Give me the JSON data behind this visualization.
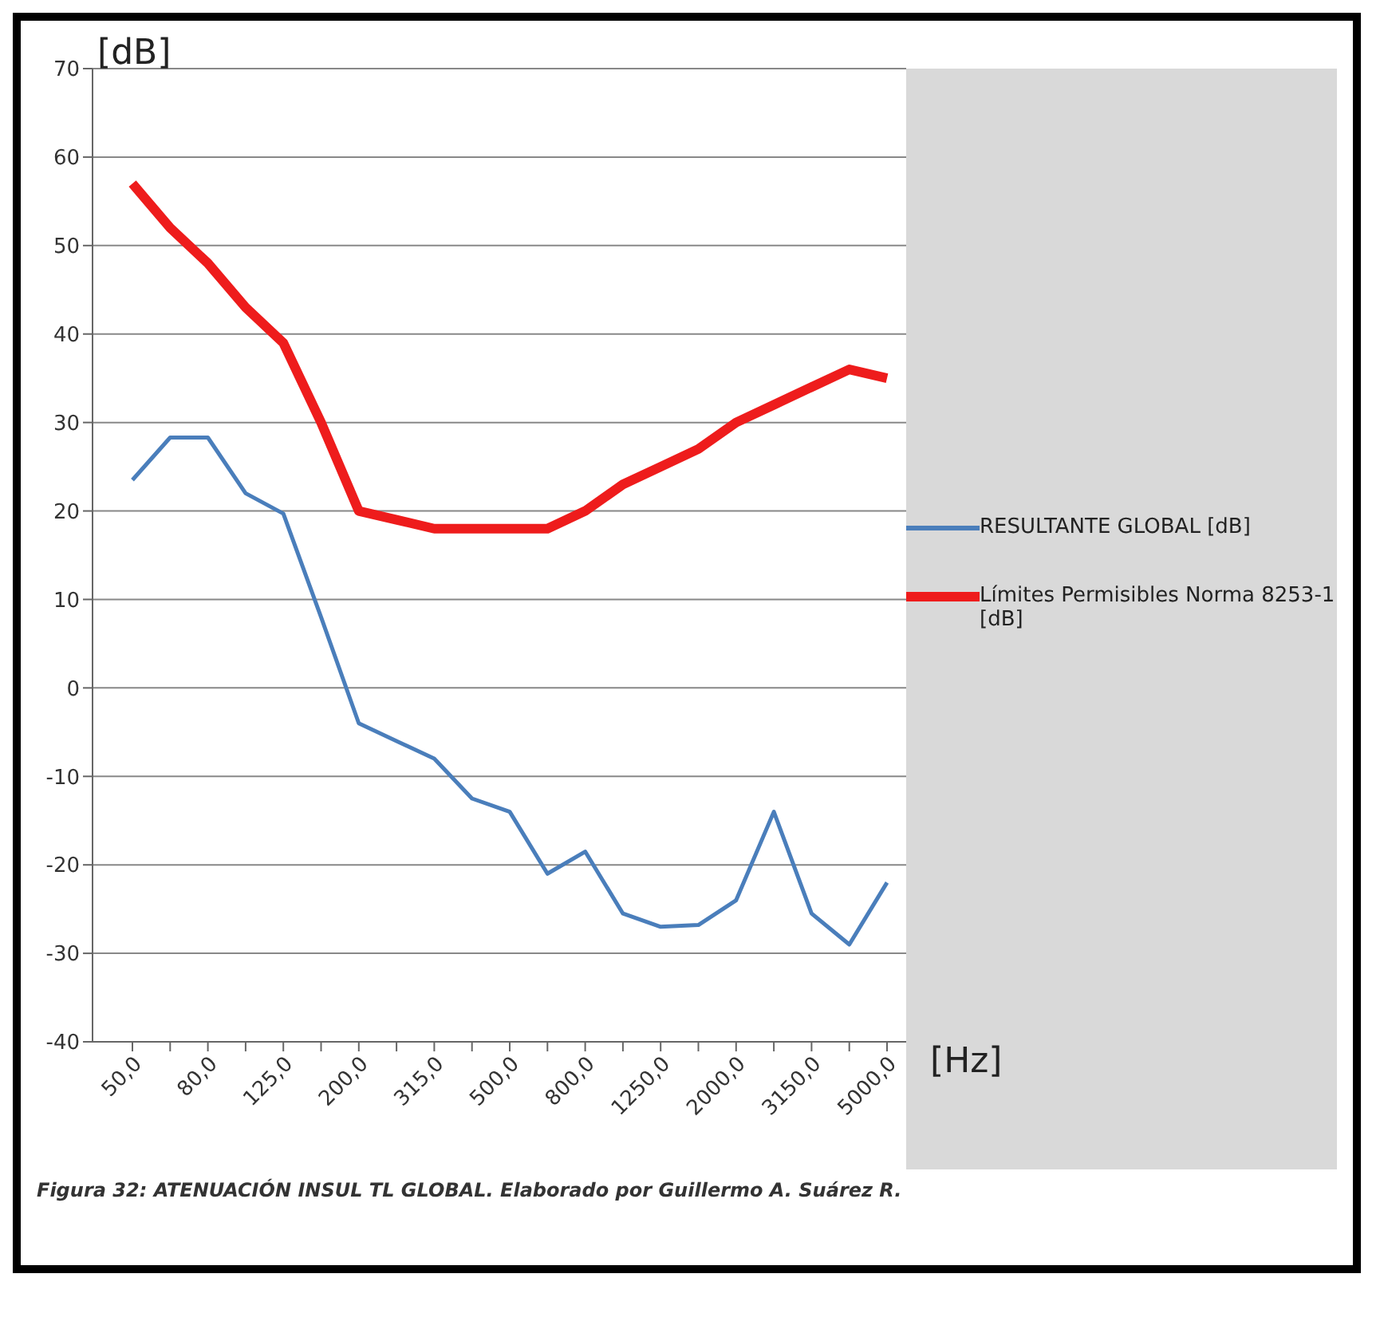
{
  "chart_data": {
    "type": "line",
    "ylabel": "[dB]",
    "xlabel": "[Hz]",
    "categories": [
      "50,0",
      null,
      "80,0",
      null,
      "125,0",
      null,
      "200,0",
      null,
      "315,0",
      null,
      "500,0",
      null,
      "800,0",
      null,
      "1250,0",
      null,
      "2000,0",
      null,
      "3150,0",
      null,
      "5000,0"
    ],
    "series": [
      {
        "name": "RESULTANTE GLOBAL [dB]",
        "color": "#4a7ebb",
        "values": [
          23.5,
          28.3,
          28.3,
          22,
          19.7,
          8,
          -4,
          -6,
          -8,
          -12.5,
          -14,
          -21,
          -18.5,
          -25.5,
          -27,
          -26.8,
          -24,
          -14,
          -25.5,
          -29,
          -22
        ]
      },
      {
        "name": "Límites Permisibles Norma 8253-1 [dB]",
        "color": "#ee1c1c",
        "values": [
          57,
          52,
          48,
          43,
          39,
          30,
          20,
          19,
          18,
          18,
          18,
          18,
          20,
          23,
          25,
          27,
          30,
          32,
          34,
          36,
          35
        ]
      }
    ],
    "ylim": [
      -40,
      70
    ],
    "yticks": [
      -40,
      -30,
      -20,
      -10,
      0,
      10,
      20,
      30,
      40,
      50,
      60,
      70
    ],
    "grid": "y",
    "legend": "right",
    "marker": "none",
    "line_style": "solid",
    "annotations": [
      "Figura 32:  ATENUACIÓN INSUL TL GLOBAL.  Elaborado por Guillermo A. Suárez R."
    ]
  }
}
